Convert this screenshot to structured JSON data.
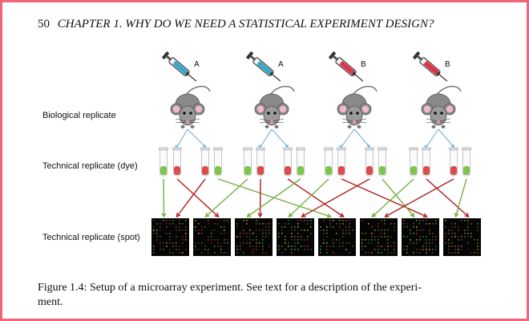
{
  "running_head": {
    "page_number": "50",
    "title": "CHAPTER 1.  WHY DO WE NEED A STATISTICAL EXPERIMENT DESIGN?"
  },
  "figure": {
    "row_labels": {
      "biological": "Biological replicate",
      "technical_dye": "Technical replicate (dye)",
      "technical_spot": "Technical replicate (spot)"
    },
    "treatments": [
      {
        "label": "A",
        "color": "#3aa6c9",
        "icon": "syringe-icon"
      },
      {
        "label": "A",
        "color": "#3aa6c9",
        "icon": "syringe-icon"
      },
      {
        "label": "B",
        "color": "#e0304a",
        "icon": "syringe-icon"
      },
      {
        "label": "B",
        "color": "#e0304a",
        "icon": "syringe-icon"
      }
    ],
    "dye_colors": {
      "green": "#6fbf3a",
      "red": "#d63a3a"
    },
    "connection_colors": {
      "green": "#74b041",
      "red": "#b01e1e",
      "blue": "#6fa8d6"
    }
  },
  "caption": {
    "line1": "Figure 1.4: Setup of a microarray experiment. See text for a description of the experi-",
    "line2": "ment."
  }
}
